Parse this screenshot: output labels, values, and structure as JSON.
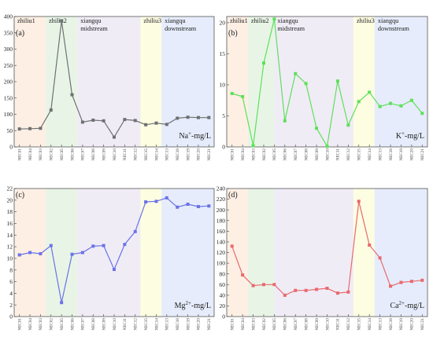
{
  "zone_colors": [
    "#fdefe4",
    "#e8f5e6",
    "#f0ecf6",
    "#fdfde2",
    "#e6ecfb"
  ],
  "x_ticks": [
    "NEC01",
    "NEC04",
    "NEC03",
    "NEC02",
    "NEC05",
    "NEC06",
    "NEC07",
    "NEC08",
    "NEC09",
    "NEC10",
    "NEC11",
    "NEC12",
    "NEC15",
    "NEC14",
    "NEC13",
    "NEC18",
    "NEC19",
    "NEC20",
    "NEC21"
  ],
  "chart_data": [
    {
      "type": "line",
      "panel": "(a)",
      "ylabel": "Na⁺-mg/L",
      "ylabel_base": "Na",
      "ylabel_sup": "+",
      "ylabel_unit": "-mg/L",
      "ylim": [
        0,
        400
      ],
      "yticks": [
        0,
        50,
        100,
        150,
        200,
        250,
        300,
        350,
        400
      ],
      "color": "#6e7173",
      "zones": [
        {
          "label": [
            "zhiliu1"
          ],
          "start": 0,
          "end": 3
        },
        {
          "label": [
            "zhiliu2"
          ],
          "start": 3,
          "end": 6
        },
        {
          "label": [
            "xiangqu",
            "midstream"
          ],
          "start": 6,
          "end": 12
        },
        {
          "label": [
            "zhiliu3"
          ],
          "start": 12,
          "end": 14
        },
        {
          "label": [
            "xiangqu",
            "downstream"
          ],
          "start": 14,
          "end": 19
        }
      ],
      "categories": [
        "NEC01",
        "NEC04",
        "NEC03",
        "NEC02",
        "NEC05",
        "NEC06",
        "NEC07",
        "NEC08",
        "NEC09",
        "NEC10",
        "NEC11",
        "NEC12",
        "NEC15",
        "NEC14",
        "NEC13",
        "NEC18",
        "NEC19",
        "NEC20",
        "NEC21"
      ],
      "values": [
        55,
        56,
        57,
        113,
        387,
        160,
        76,
        82,
        80,
        30,
        84,
        81,
        68,
        73,
        69,
        88,
        91,
        90,
        90
      ]
    },
    {
      "type": "line",
      "panel": "(b)",
      "ylabel": "K⁺-mg/L",
      "ylabel_base": "K",
      "ylabel_sup": "+",
      "ylabel_unit": "-mg/L",
      "ylim": [
        0,
        21
      ],
      "yticks": [
        0,
        5,
        10,
        15,
        20
      ],
      "color": "#5ee05a",
      "zones": [
        {
          "label": [
            "zhiliu1"
          ],
          "start": 0,
          "end": 2
        },
        {
          "label": [
            "zhiliu2"
          ],
          "start": 2,
          "end": 4.5
        },
        {
          "label": [
            "xiangqu",
            "midstream"
          ],
          "start": 4.5,
          "end": 12
        },
        {
          "label": [
            "zhiliu3"
          ],
          "start": 12,
          "end": 14
        },
        {
          "label": [
            "xiangqu",
            "downstream"
          ],
          "start": 14,
          "end": 19
        }
      ],
      "categories": [
        "NEC01",
        "NEC04",
        "NEC03",
        "NEC02",
        "NEC05",
        "NEC06",
        "NEC07",
        "NEC08",
        "NEC09",
        "NEC10",
        "NEC11",
        "NEC12",
        "NEC15",
        "NEC14",
        "NEC13",
        "NEC18",
        "NEC19",
        "NEC20",
        "NEC21"
      ],
      "values": [
        8.6,
        8.1,
        0.2,
        13.5,
        20.6,
        4.2,
        11.8,
        10.2,
        3.0,
        0.1,
        10.6,
        3.5,
        7.3,
        8.8,
        6.5,
        7.0,
        6.6,
        7.5,
        5.4
      ]
    },
    {
      "type": "line",
      "panel": "(c)",
      "ylabel": "Mg²⁺-mg/L",
      "ylabel_base": "Mg",
      "ylabel_sup": "2+",
      "ylabel_unit": "-mg/L",
      "ylim": [
        0,
        22
      ],
      "yticks": [
        0,
        2,
        4,
        6,
        8,
        10,
        12,
        14,
        16,
        18,
        20,
        22
      ],
      "color": "#6b73e8",
      "zones": [
        {
          "label": [],
          "start": 0,
          "end": 3
        },
        {
          "label": [],
          "start": 3,
          "end": 6
        },
        {
          "label": [],
          "start": 6,
          "end": 12
        },
        {
          "label": [],
          "start": 12,
          "end": 14
        },
        {
          "label": [],
          "start": 14,
          "end": 19
        }
      ],
      "categories": [
        "NEC01",
        "NEC04",
        "NEC03",
        "NEC02",
        "NEC05",
        "NEC06",
        "NEC07",
        "NEC08",
        "NEC09",
        "NEC10",
        "NEC11",
        "NEC12",
        "NEC15",
        "NEC14",
        "NEC13",
        "NEC18",
        "NEC19",
        "NEC20",
        "NEC21"
      ],
      "values": [
        10.6,
        11.0,
        10.8,
        12.2,
        2.4,
        10.7,
        11.0,
        12.1,
        12.2,
        8.1,
        12.4,
        14.6,
        19.7,
        19.8,
        20.4,
        18.8,
        19.3,
        18.9,
        19.0
      ]
    },
    {
      "type": "line",
      "panel": "(d)",
      "ylabel": "Ca²⁺-mg/L",
      "ylabel_base": "Ca",
      "ylabel_sup": "2+",
      "ylabel_unit": "-mg/L",
      "ylim": [
        0,
        240
      ],
      "yticks": [
        0,
        20,
        40,
        60,
        80,
        100,
        120,
        140,
        160,
        180,
        200,
        220,
        240
      ],
      "color": "#e86a6e",
      "zones": [
        {
          "label": [],
          "start": 0,
          "end": 2
        },
        {
          "label": [],
          "start": 2,
          "end": 4.5
        },
        {
          "label": [],
          "start": 4.5,
          "end": 12
        },
        {
          "label": [],
          "start": 12,
          "end": 14
        },
        {
          "label": [],
          "start": 14,
          "end": 19
        }
      ],
      "categories": [
        "NEC01",
        "NEC04",
        "NEC03",
        "NEC02",
        "NEC05",
        "NEC06",
        "NEC07",
        "NEC08",
        "NEC09",
        "NEC10",
        "NEC11",
        "NEC12",
        "NEC15",
        "NEC14",
        "NEC13",
        "NEC18",
        "NEC19",
        "NEC20",
        "NEC21"
      ],
      "values": [
        132,
        78,
        58,
        60,
        60,
        40,
        49,
        49,
        51,
        53,
        44,
        46,
        216,
        134,
        110,
        57,
        64,
        66,
        68
      ]
    }
  ]
}
